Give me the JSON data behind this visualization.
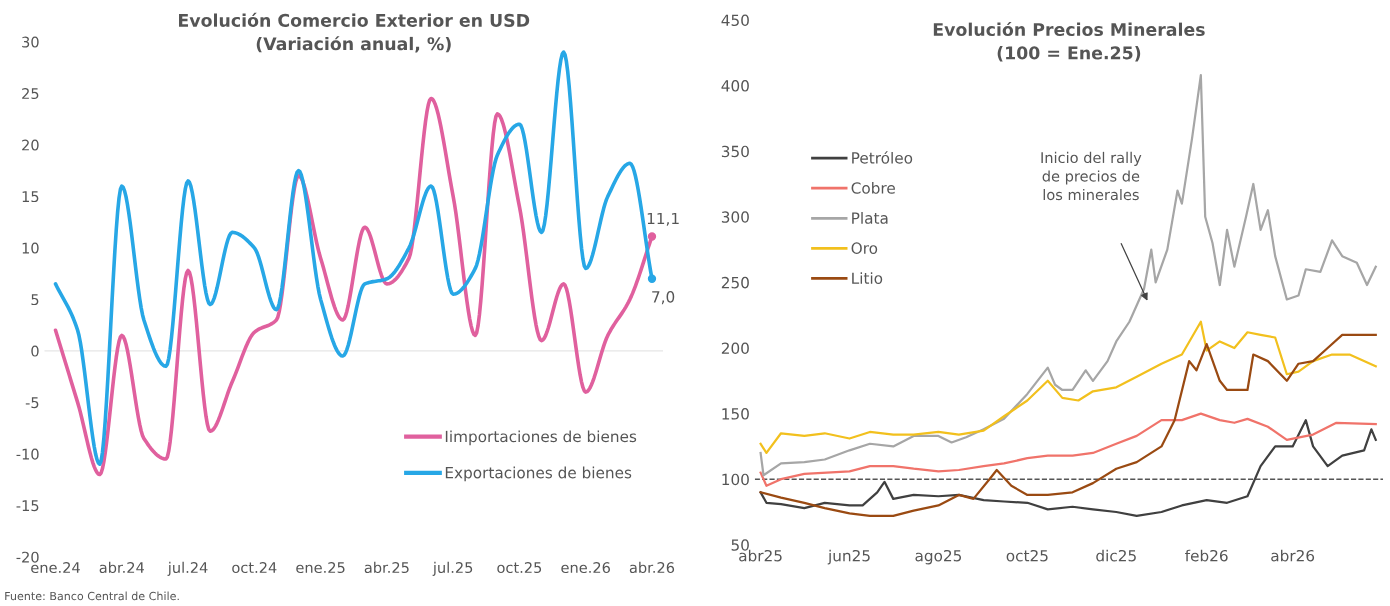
{
  "chart_data": [
    {
      "type": "line",
      "title": "Evolución Comercio Exterior en USD\n(Variación anual, %)",
      "categories": [
        "ene.24",
        null,
        null,
        "abr.24",
        null,
        null,
        "jul.24",
        null,
        null,
        "oct.24",
        null,
        null,
        "ene.25",
        null,
        null,
        "abr.25",
        null,
        null,
        "jul.25",
        null,
        null,
        "oct.25",
        null,
        null,
        "ene.26",
        null,
        null,
        "abr.26"
      ],
      "series": [
        {
          "name": "Iimportaciones de bienes",
          "color": "#e0609e",
          "values": [
            2,
            -5,
            -12,
            1.5,
            -8.5,
            -10.5,
            7.8,
            -7.8,
            -3,
            1.8,
            3,
            17,
            9,
            3,
            12,
            6.5,
            9,
            24.5,
            15,
            1.5,
            23,
            14,
            1,
            6.5,
            -4,
            1.5,
            5,
            11.1
          ],
          "value_labels": [
            null,
            null,
            null,
            null,
            null,
            null,
            null,
            null,
            null,
            null,
            null,
            null,
            null,
            null,
            null,
            null,
            null,
            null,
            null,
            null,
            null,
            null,
            null,
            null,
            null,
            null,
            null,
            "11,1"
          ]
        },
        {
          "name": "Exportaciones de bienes",
          "color": "#27a7e6",
          "values": [
            6.5,
            2,
            -11,
            16,
            3,
            -1.5,
            16.5,
            4.5,
            11.5,
            10,
            4,
            17.5,
            5,
            -0.5,
            6.5,
            7,
            10,
            16,
            5.5,
            8,
            19,
            22,
            11.5,
            29,
            8,
            15,
            18.2,
            7.0
          ],
          "value_labels": [
            null,
            null,
            null,
            null,
            null,
            null,
            null,
            null,
            null,
            null,
            null,
            null,
            null,
            null,
            null,
            null,
            null,
            null,
            null,
            null,
            null,
            null,
            null,
            null,
            null,
            null,
            null,
            "7,0"
          ]
        }
      ],
      "ylim": [
        -20,
        30
      ],
      "yticks": [
        -20,
        -15,
        -10,
        -5,
        0,
        5,
        10,
        15,
        20,
        25,
        30
      ],
      "ref_lines": [
        {
          "axis": "y",
          "value": 0,
          "color": "#e6e6e6"
        }
      ],
      "legend": "bottom right",
      "grid": false,
      "marker": "none",
      "line_style": "solid",
      "annotations": [
        "Fuente: Banco Central de Chile."
      ]
    },
    {
      "type": "line",
      "title": "Evolución Precios Minerales\n(100 = Ene.25)",
      "series": [
        {
          "name": "Petróleo",
          "color": "#404040",
          "x": [
            "2025-04-01",
            "2025-04-05",
            "2025-04-15",
            "2025-05-01",
            "2025-05-15",
            "2025-06-01",
            "2025-06-10",
            "2025-06-20",
            "2025-06-25",
            "2025-07-01",
            "2025-07-15",
            "2025-08-01",
            "2025-08-15",
            "2025-09-01",
            "2025-09-15",
            "2025-10-01",
            "2025-10-15",
            "2025-11-01",
            "2025-11-15",
            "2025-12-01",
            "2025-12-15",
            "2026-01-01",
            "2026-01-15",
            "2026-02-01",
            "2026-02-15",
            "2026-03-01",
            "2026-03-10",
            "2026-03-20",
            "2026-04-01",
            "2026-04-10",
            "2026-04-15",
            "2026-04-25",
            "2026-05-05",
            "2026-05-20",
            "2026-05-25",
            "2026-05-28"
          ],
          "values": [
            90,
            82,
            81,
            78,
            82,
            80,
            80,
            90,
            98,
            85,
            88,
            87,
            88,
            84,
            83,
            82,
            77,
            79,
            77,
            75,
            72,
            75,
            80,
            84,
            82,
            87,
            110,
            125,
            125,
            145,
            125,
            110,
            118,
            122,
            138,
            130
          ]
        },
        {
          "name": "Cobre",
          "color": "#f0736a",
          "x": [
            "2025-04-01",
            "2025-04-05",
            "2025-04-15",
            "2025-05-01",
            "2025-06-01",
            "2025-06-15",
            "2025-07-01",
            "2025-07-15",
            "2025-08-01",
            "2025-08-15",
            "2025-09-01",
            "2025-09-15",
            "2025-10-01",
            "2025-10-15",
            "2025-11-01",
            "2025-11-15",
            "2025-12-01",
            "2025-12-15",
            "2026-01-01",
            "2026-01-15",
            "2026-01-28",
            "2026-02-10",
            "2026-02-20",
            "2026-03-01",
            "2026-03-15",
            "2026-03-28",
            "2026-04-15",
            "2026-05-01",
            "2026-05-28"
          ],
          "values": [
            105,
            95,
            100,
            104,
            106,
            110,
            110,
            108,
            106,
            107,
            110,
            112,
            116,
            118,
            118,
            120,
            127,
            133,
            145,
            145,
            150,
            145,
            143,
            146,
            140,
            130,
            134,
            143,
            142
          ]
        },
        {
          "name": "Plata",
          "color": "#a6a6a6",
          "x": [
            "2025-04-01",
            "2025-04-03",
            "2025-04-15",
            "2025-05-01",
            "2025-05-15",
            "2025-06-01",
            "2025-06-15",
            "2025-07-01",
            "2025-07-15",
            "2025-08-01",
            "2025-08-10",
            "2025-08-20",
            "2025-09-01",
            "2025-09-15",
            "2025-10-01",
            "2025-10-15",
            "2025-10-20",
            "2025-10-25",
            "2025-11-01",
            "2025-11-10",
            "2025-11-15",
            "2025-11-25",
            "2025-12-01",
            "2025-12-10",
            "2025-12-20",
            "2025-12-25",
            "2025-12-28",
            "2026-01-05",
            "2026-01-12",
            "2026-01-15",
            "2026-01-22",
            "2026-01-28",
            "2026-01-31",
            "2026-02-05",
            "2026-02-10",
            "2026-02-15",
            "2026-02-20",
            "2026-02-28",
            "2026-03-05",
            "2026-03-10",
            "2026-03-15",
            "2026-03-20",
            "2026-03-28",
            "2026-04-05",
            "2026-04-10",
            "2026-04-20",
            "2026-04-28",
            "2026-05-05",
            "2026-05-15",
            "2026-05-22",
            "2026-05-28"
          ],
          "values": [
            120,
            103,
            112,
            113,
            115,
            122,
            127,
            125,
            133,
            133,
            128,
            132,
            138,
            146,
            165,
            185,
            172,
            168,
            168,
            183,
            175,
            190,
            205,
            220,
            245,
            275,
            250,
            275,
            320,
            310,
            360,
            408,
            300,
            280,
            248,
            290,
            262,
            300,
            325,
            290,
            305,
            270,
            237,
            240,
            260,
            258,
            282,
            270,
            265,
            248,
            262
          ]
        },
        {
          "name": "Oro",
          "color": "#f2c01d",
          "x": [
            "2025-04-01",
            "2025-04-05",
            "2025-04-15",
            "2025-05-01",
            "2025-05-15",
            "2025-06-01",
            "2025-06-15",
            "2025-07-01",
            "2025-07-15",
            "2025-08-01",
            "2025-08-15",
            "2025-09-01",
            "2025-09-15",
            "2025-10-01",
            "2025-10-15",
            "2025-10-25",
            "2025-11-05",
            "2025-11-15",
            "2025-12-01",
            "2025-12-15",
            "2026-01-01",
            "2026-01-15",
            "2026-01-28",
            "2026-02-01",
            "2026-02-10",
            "2026-02-20",
            "2026-03-01",
            "2026-03-10",
            "2026-03-20",
            "2026-03-28",
            "2026-04-05",
            "2026-04-15",
            "2026-04-28",
            "2026-05-10",
            "2026-05-28"
          ],
          "values": [
            127,
            120,
            135,
            133,
            135,
            131,
            136,
            134,
            134,
            136,
            134,
            137,
            148,
            160,
            175,
            162,
            160,
            167,
            170,
            178,
            188,
            195,
            220,
            198,
            205,
            200,
            212,
            210,
            208,
            180,
            182,
            190,
            195,
            195,
            186
          ]
        },
        {
          "name": "Litio",
          "color": "#9a4a12",
          "x": [
            "2025-04-01",
            "2025-04-15",
            "2025-05-01",
            "2025-05-15",
            "2025-06-01",
            "2025-06-15",
            "2025-07-01",
            "2025-07-15",
            "2025-08-01",
            "2025-08-15",
            "2025-08-25",
            "2025-09-05",
            "2025-09-10",
            "2025-09-20",
            "2025-10-01",
            "2025-10-15",
            "2025-11-01",
            "2025-11-15",
            "2025-12-01",
            "2025-12-15",
            "2026-01-01",
            "2026-01-10",
            "2026-01-20",
            "2026-01-25",
            "2026-02-01",
            "2026-02-10",
            "2026-02-15",
            "2026-03-01",
            "2026-03-05",
            "2026-03-15",
            "2026-03-28",
            "2026-04-05",
            "2026-04-15",
            "2026-04-25",
            "2026-05-05",
            "2026-05-28"
          ],
          "values": [
            90,
            86,
            82,
            78,
            74,
            72,
            72,
            76,
            80,
            88,
            85,
            100,
            107,
            95,
            88,
            88,
            90,
            97,
            108,
            113,
            125,
            145,
            190,
            183,
            203,
            175,
            168,
            168,
            195,
            190,
            175,
            188,
            190,
            200,
            210,
            210
          ]
        }
      ],
      "xlim": [
        "2025-03-28",
        "2026-06-02"
      ],
      "xticks": [
        {
          "value": "2025-04-01",
          "label": "abr25"
        },
        {
          "value": "2025-06-01",
          "label": "jun25"
        },
        {
          "value": "2025-08-01",
          "label": "ago25"
        },
        {
          "value": "2025-10-01",
          "label": "oct25"
        },
        {
          "value": "2025-12-01",
          "label": "dic25"
        },
        {
          "value": "2026-02-01",
          "label": "feb26"
        },
        {
          "value": "2026-04-01",
          "label": "abr26"
        }
      ],
      "ylim": [
        50,
        450
      ],
      "yticks": [
        50,
        100,
        150,
        200,
        250,
        300,
        350,
        400,
        450
      ],
      "ref_lines": [
        {
          "axis": "y",
          "value": 100,
          "color": "#555555",
          "line_style": "dashed"
        }
      ],
      "annotations": [
        "Inicio del rally\nde precios de\nlos minerales"
      ],
      "legend": "left",
      "grid": false,
      "marker": "none",
      "line_style": "solid"
    }
  ]
}
